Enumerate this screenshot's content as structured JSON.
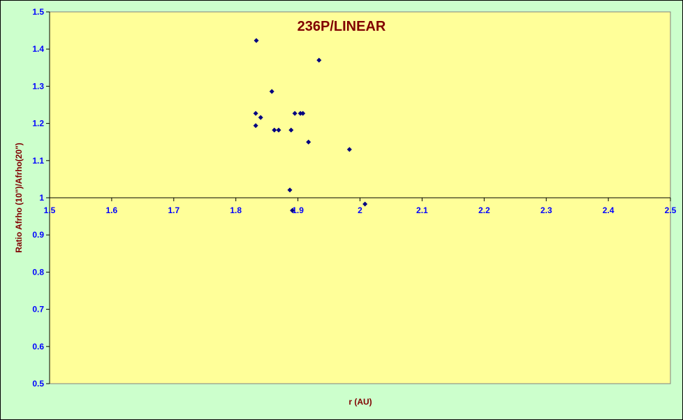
{
  "chart_data": {
    "type": "scatter",
    "title": "236P/LINEAR",
    "x_label": "r (AU)",
    "y_label": "Ratio Afrho (10\")/Afrho(20\")",
    "xlim": [
      1.5,
      2.5
    ],
    "ylim": [
      0.5,
      1.5
    ],
    "x_axis_crossing": 1,
    "xticks": [
      1.5,
      1.6,
      1.7,
      1.8,
      1.9,
      2,
      2.1,
      2.2,
      2.3,
      2.4,
      2.5
    ],
    "yticks": [
      0.5,
      0.6,
      0.7,
      0.8,
      0.9,
      1,
      1.1,
      1.2,
      1.3,
      1.4,
      1.5
    ],
    "grid": false,
    "series": [
      {
        "color": "#000080",
        "x": [
          1.833,
          1.934,
          1.858,
          1.832,
          1.895,
          1.904,
          1.908,
          1.84,
          1.832,
          1.862,
          1.869,
          1.889,
          1.917,
          1.983,
          1.887,
          1.891,
          2.008
        ],
        "values": [
          1.423,
          1.37,
          1.286,
          1.227,
          1.227,
          1.227,
          1.227,
          1.216,
          1.194,
          1.182,
          1.182,
          1.182,
          1.15,
          1.13,
          1.021,
          0.966,
          0.983
        ]
      }
    ]
  }
}
